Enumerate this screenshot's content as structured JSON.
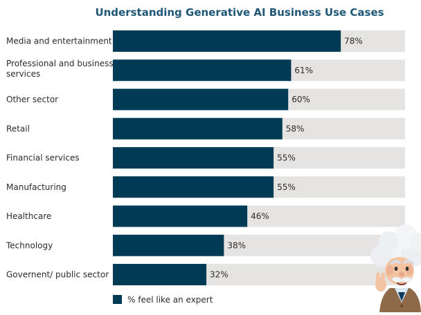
{
  "chart_data": {
    "type": "bar",
    "orientation": "horizontal",
    "title": "Understanding Generative AI Business Use Cases",
    "categories": [
      "Media and entertainment",
      "Professional and business services",
      "Other sector",
      "Retail",
      "Financial services",
      "Manufacturing",
      "Healthcare",
      "Technology",
      "Governent/ public sector"
    ],
    "series": [
      {
        "name": "% feel like an expert",
        "values": [
          78,
          61,
          60,
          58,
          55,
          55,
          46,
          38,
          32
        ],
        "labels": [
          "78%",
          "61%",
          "60%",
          "58%",
          "55%",
          "55%",
          "46%",
          "38%",
          "32%"
        ]
      }
    ],
    "xlim": [
      0,
      100
    ],
    "grid": false,
    "legend_position": "bottom-left"
  },
  "colors": {
    "bar": "#003b56",
    "track": "#e6e4e3",
    "text": "#2b2b2b",
    "title": "#1f5777",
    "mascot_fur": "#f2f3f5",
    "mascot_skin": "#f3c3a2",
    "mascot_jacket": "#8e6a48"
  },
  "icons": {
    "mascot": "einstein-mascot-icon"
  }
}
